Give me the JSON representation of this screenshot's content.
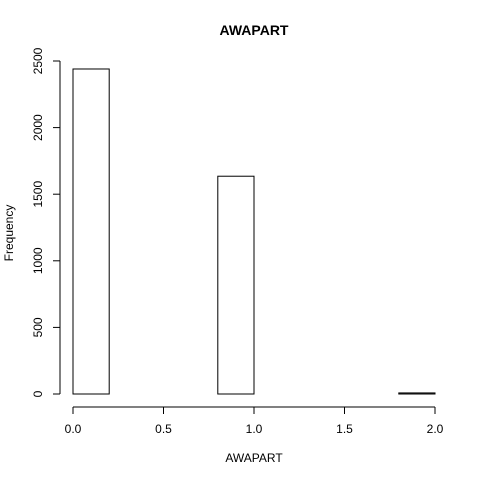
{
  "chart_data": {
    "type": "bar",
    "title": "AWAPART",
    "xlabel": "AWAPART",
    "ylabel": "Frequency",
    "bins": [
      [
        0.0,
        0.2
      ],
      [
        0.2,
        0.4
      ],
      [
        0.4,
        0.6
      ],
      [
        0.6,
        0.8
      ],
      [
        0.8,
        1.0
      ],
      [
        1.0,
        1.2
      ],
      [
        1.2,
        1.4
      ],
      [
        1.4,
        1.6
      ],
      [
        1.6,
        1.8
      ],
      [
        1.8,
        2.0
      ]
    ],
    "values": [
      2440,
      0,
      0,
      0,
      1635,
      0,
      0,
      0,
      0,
      8
    ],
    "xlim": [
      0,
      2
    ],
    "ylim": [
      0,
      2500
    ],
    "x_ticks": [
      0.0,
      0.5,
      1.0,
      1.5,
      2.0
    ],
    "x_tick_labels": [
      "0.0",
      "0.5",
      "1.0",
      "1.5",
      "2.0"
    ],
    "y_ticks": [
      0,
      500,
      1000,
      1500,
      2000,
      2500
    ],
    "y_tick_labels": [
      "0",
      "500",
      "1000",
      "1500",
      "2000",
      "2500"
    ],
    "grid": false,
    "bar_fill": "#ffffff",
    "bar_stroke": "#000000"
  }
}
